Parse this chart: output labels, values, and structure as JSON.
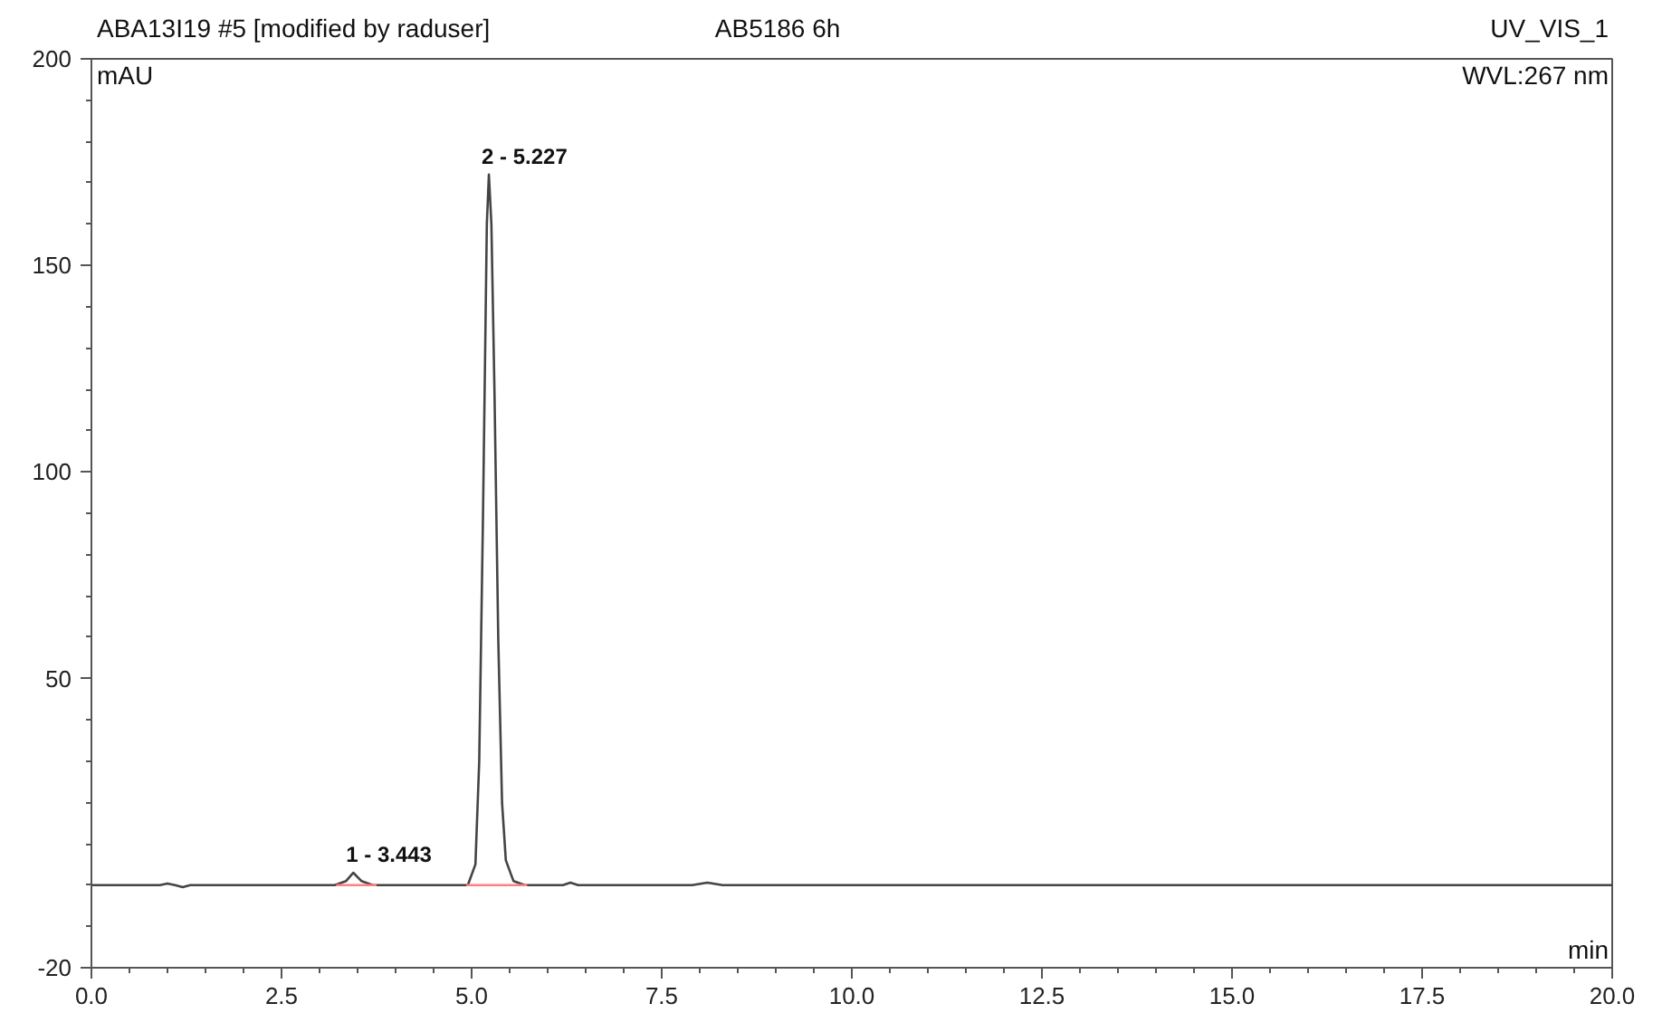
{
  "chart_data": {
    "type": "line",
    "xlabel": "min",
    "ylabel": "mAU",
    "annotations": [
      "ABA13I19 #5 [modified by raduser]",
      "AB5186 6h",
      "UV_VIS_1",
      "WVL:267 nm",
      {
        "text": "1 - 3.443",
        "x": 3.443,
        "y": 3
      },
      {
        "text": "2 - 5.227",
        "x": 5.227,
        "y": 172
      }
    ],
    "series": [
      {
        "color": "#444444",
        "x": [
          0,
          0.9,
          1.0,
          1.1,
          1.2,
          1.3,
          3.2,
          3.35,
          3.443,
          3.55,
          3.7,
          4.95,
          5.05,
          5.1,
          5.15,
          5.2,
          5.227,
          5.26,
          5.3,
          5.35,
          5.4,
          5.45,
          5.55,
          5.7,
          6.2,
          6.3,
          6.4,
          7.9,
          8.1,
          8.3,
          20
        ],
        "values": [
          0,
          0,
          0.4,
          0,
          -0.5,
          0,
          0,
          1,
          3,
          1,
          0,
          0,
          5,
          30,
          90,
          160,
          172,
          160,
          120,
          60,
          20,
          6,
          1,
          0,
          0,
          0.6,
          0,
          0,
          0.6,
          0,
          0
        ]
      },
      {
        "color": "#ff8080",
        "x": [
          3.22,
          3.75
        ],
        "values": [
          0,
          0
        ]
      },
      {
        "color": "#ff8080",
        "x": [
          4.93,
          5.73
        ],
        "values": [
          0,
          0
        ]
      }
    ],
    "xlim": [
      0,
      20
    ],
    "ylim": [
      -20,
      200
    ],
    "xticks": [
      {
        "value": 0,
        "label": "0.0"
      },
      {
        "value": 2.5,
        "label": "2.5"
      },
      {
        "value": 5,
        "label": "5.0"
      },
      {
        "value": 7.5,
        "label": "7.5"
      },
      {
        "value": 10,
        "label": "10.0"
      },
      {
        "value": 12.5,
        "label": "12.5"
      },
      {
        "value": 15,
        "label": "15.0"
      },
      {
        "value": 17.5,
        "label": "17.5"
      },
      {
        "value": 20,
        "label": "20.0"
      }
    ],
    "yticks": [
      -20,
      50,
      100,
      150,
      200
    ],
    "grid": false
  }
}
